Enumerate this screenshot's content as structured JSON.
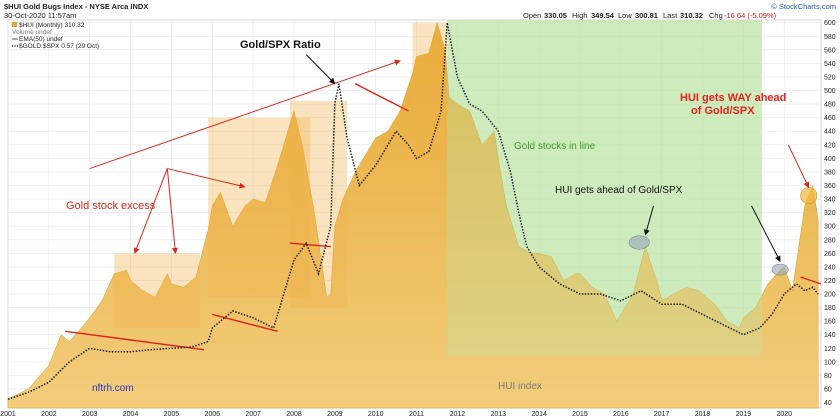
{
  "header": {
    "symbol_line": "$HUI Gold Bugs Index - NYSE Arca INDX",
    "datetime": "30-Oct-2020 11:57am",
    "brand": "© StockCharts.com",
    "quote": {
      "open_label": "Open",
      "open": "330.05",
      "high_label": "High",
      "high": "349.54",
      "low_label": "Low",
      "low": "300.81",
      "last_label": "Last",
      "last": "310.32",
      "chg_label": "Chg",
      "chg": "-16.64 (-5.09%)"
    }
  },
  "legend": {
    "items": [
      {
        "label": "$HUI (Monthly) 310.32",
        "color": "#e0a82e",
        "marker": "square"
      },
      {
        "label": "Volume undef",
        "color": "#888888",
        "marker": "none"
      },
      {
        "label": "EMA(50) undef",
        "color": "#555555",
        "marker": "line"
      },
      {
        "label": "$GOLD:$SPX 0.57 (29 Oct)",
        "color": "#111111",
        "marker": "dotted"
      }
    ]
  },
  "annotations": {
    "gold_spx_ratio": "Gold/SPX Ratio",
    "gold_stock_excess": "Gold stock excess",
    "gold_stocks_in_line": "Gold stocks in line",
    "hui_ahead": "HUI gets ahead of Gold/SPX",
    "hui_way_ahead_line1": "HUI gets WAY ahead",
    "hui_way_ahead_line2": "of Gold/SPX",
    "watermark_site": "nftrh.com",
    "watermark_index": "HUI index"
  },
  "colors": {
    "area_fill": "#f2cd7c",
    "area_top": "#e7aa36",
    "excess_box": "#f0b24a",
    "in_line_box": "#b9e3a3",
    "annotation_red": "#e0241b",
    "ratio_line": "#111111",
    "highlight_ellipse": "#9aa7b8"
  },
  "chart_data": {
    "type": "area",
    "title": "",
    "xlabel": "",
    "ylabel": "",
    "x_ticks": [
      "2001",
      "2002",
      "2003",
      "2004",
      "2005",
      "2006",
      "2007",
      "2008",
      "2009",
      "2010",
      "2011",
      "2012",
      "2013",
      "2014",
      "2015",
      "2016",
      "2017",
      "2018",
      "2019",
      "2020"
    ],
    "y_ticks": [
      40,
      60,
      80,
      100,
      120,
      140,
      160,
      180,
      200,
      220,
      240,
      260,
      280,
      300,
      320,
      340,
      360,
      380,
      400,
      420,
      440,
      460,
      480,
      500,
      520,
      540,
      560,
      580,
      600
    ],
    "xlim": [
      2001.0,
      2020.9
    ],
    "ylim": [
      32,
      604
    ],
    "grid": true,
    "series": [
      {
        "name": "$HUI (Monthly) 310.32",
        "style": "area",
        "x": [
          2001.0,
          2001.5,
          2002.0,
          2002.3,
          2002.5,
          2002.8,
          2003.0,
          2003.3,
          2003.6,
          2003.9,
          2004.0,
          2004.3,
          2004.6,
          2004.9,
          2005.0,
          2005.3,
          2005.6,
          2005.9,
          2006.0,
          2006.2,
          2006.5,
          2006.8,
          2007.0,
          2007.3,
          2007.6,
          2007.9,
          2008.0,
          2008.2,
          2008.5,
          2008.8,
          2008.9,
          2009.0,
          2009.2,
          2009.5,
          2009.8,
          2010.0,
          2010.3,
          2010.6,
          2010.9,
          2011.0,
          2011.3,
          2011.5,
          2011.7,
          2011.8,
          2012.0,
          2012.3,
          2012.6,
          2012.9,
          2013.0,
          2013.2,
          2013.5,
          2013.8,
          2014.0,
          2014.3,
          2014.6,
          2014.9,
          2015.0,
          2015.3,
          2015.6,
          2015.9,
          2016.0,
          2016.3,
          2016.6,
          2016.9,
          2017.0,
          2017.3,
          2017.6,
          2017.9,
          2018.0,
          2018.3,
          2018.6,
          2018.9,
          2019.0,
          2019.3,
          2019.6,
          2019.9,
          2020.0,
          2020.2,
          2020.5,
          2020.7,
          2020.83
        ],
        "y": [
          45,
          60,
          95,
          140,
          130,
          150,
          165,
          190,
          230,
          235,
          220,
          205,
          195,
          230,
          215,
          210,
          225,
          295,
          330,
          350,
          300,
          330,
          340,
          335,
          390,
          450,
          470,
          420,
          320,
          195,
          200,
          300,
          340,
          380,
          410,
          430,
          440,
          470,
          525,
          550,
          555,
          600,
          560,
          490,
          480,
          470,
          420,
          440,
          400,
          330,
          270,
          260,
          260,
          255,
          220,
          230,
          230,
          210,
          200,
          160,
          170,
          200,
          270,
          215,
          190,
          200,
          210,
          205,
          200,
          185,
          160,
          150,
          165,
          180,
          215,
          235,
          240,
          205,
          330,
          360,
          310
        ]
      },
      {
        "name": "$GOLD:$SPX 0.57 (29 Oct)",
        "style": "dotted",
        "x": [
          2001.0,
          2001.5,
          2002.0,
          2002.5,
          2003.0,
          2003.5,
          2004.0,
          2004.5,
          2005.0,
          2005.5,
          2005.9,
          2006.0,
          2006.5,
          2007.0,
          2007.5,
          2008.0,
          2008.3,
          2008.6,
          2008.9,
          2009.0,
          2009.1,
          2009.3,
          2009.6,
          2010.0,
          2010.5,
          2010.8,
          2011.0,
          2011.3,
          2011.6,
          2011.75,
          2012.0,
          2012.3,
          2012.6,
          2013.0,
          2013.3,
          2013.5,
          2013.7,
          2014.0,
          2014.5,
          2015.0,
          2015.5,
          2016.0,
          2016.5,
          2017.0,
          2017.5,
          2018.0,
          2018.5,
          2019.0,
          2019.4,
          2019.7,
          2020.0,
          2020.3,
          2020.5,
          2020.7,
          2020.83
        ],
        "y": [
          45,
          55,
          70,
          100,
          120,
          115,
          115,
          118,
          120,
          122,
          130,
          150,
          175,
          165,
          150,
          250,
          275,
          230,
          300,
          480,
          510,
          430,
          360,
          390,
          440,
          420,
          400,
          410,
          470,
          600,
          520,
          480,
          470,
          440,
          380,
          320,
          270,
          240,
          215,
          200,
          200,
          190,
          205,
          185,
          185,
          170,
          155,
          140,
          150,
          170,
          200,
          215,
          205,
          210,
          200
        ]
      }
    ],
    "excess_zones": [
      {
        "x": [
          2003.6,
          2005.7
        ],
        "y": [
          150,
          260
        ]
      },
      {
        "x": [
          2005.9,
          2008.4
        ],
        "y": [
          195,
          460
        ]
      },
      {
        "x": [
          2007.9,
          2009.3
        ],
        "y": [
          180,
          485
        ]
      },
      {
        "x": [
          2010.9,
          2011.75
        ],
        "y": [
          400,
          600
        ]
      }
    ],
    "in_line_zone": {
      "x": [
        2011.75,
        2019.45
      ],
      "y": [
        108,
        604
      ]
    },
    "red_lines": [
      {
        "x": [
          2002.4,
          2005.8
        ],
        "y": [
          145,
          118
        ]
      },
      {
        "x": [
          2006.0,
          2007.6
        ],
        "y": [
          170,
          145
        ]
      },
      {
        "x": [
          2007.9,
          2008.9
        ],
        "y": [
          275,
          270
        ]
      },
      {
        "x": [
          2009.5,
          2010.8
        ],
        "y": [
          510,
          470
        ]
      },
      {
        "x": [
          2020.4,
          2020.9
        ],
        "y": [
          225,
          215
        ]
      }
    ],
    "highlight_ellipses": [
      {
        "x": 2016.45,
        "y": 276,
        "rx_years": 0.25,
        "ry_units": 10
      },
      {
        "x": 2019.9,
        "y": 236,
        "rx_years": 0.2,
        "ry_units": 8
      },
      {
        "x": 2020.6,
        "y": 345,
        "rx_years": 0.2,
        "ry_units": 12
      }
    ],
    "arrows": [
      {
        "from": [
          2003.0,
          385
        ],
        "to": [
          2010.6,
          544
        ]
      },
      {
        "from": [
          2004.9,
          385
        ],
        "to": [
          2006.8,
          358
        ]
      },
      {
        "from": [
          2004.9,
          385
        ],
        "to": [
          2005.1,
          260
        ]
      },
      {
        "from": [
          2004.9,
          385
        ],
        "to": [
          2004.1,
          260
        ]
      },
      {
        "from": [
          2008.3,
          553
        ],
        "to": [
          2009.0,
          510
        ]
      },
      {
        "from": [
          2016.8,
          330
        ],
        "to": [
          2016.6,
          287
        ]
      },
      {
        "from": [
          2019.2,
          330
        ],
        "to": [
          2019.9,
          248
        ]
      },
      {
        "from": [
          2020.1,
          420
        ],
        "to": [
          2020.6,
          357
        ]
      }
    ]
  }
}
